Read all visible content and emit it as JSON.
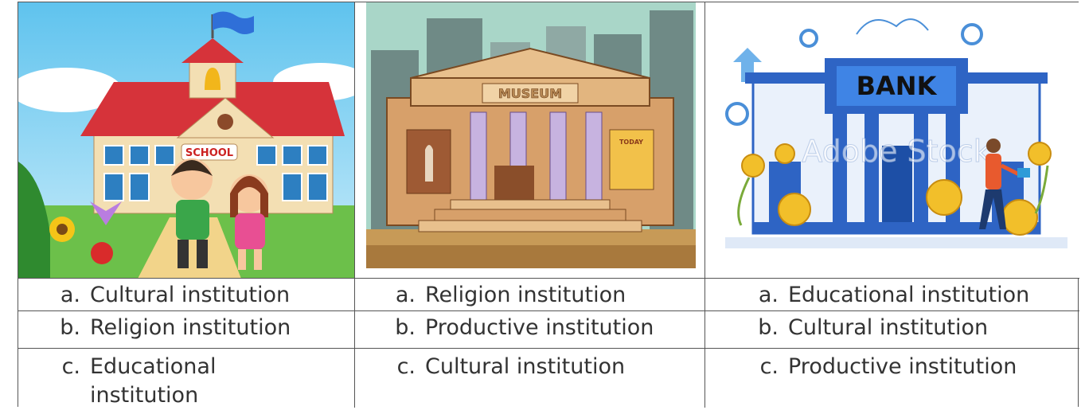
{
  "columns": [
    {
      "image": {
        "sign": "SCHOOL"
      },
      "options": [
        {
          "letter": "a.",
          "text": "Cultural institution"
        },
        {
          "letter": "b.",
          "text": "Religion institution"
        },
        {
          "letter": "c.",
          "text": "Educational institution"
        }
      ]
    },
    {
      "image": {
        "sign": "MUSEUM",
        "poster": "TODAY"
      },
      "options": [
        {
          "letter": "a.",
          "text": "Religion institution"
        },
        {
          "letter": "b.",
          "text": "Productive institution"
        },
        {
          "letter": "c.",
          "text": "Cultural institution"
        }
      ]
    },
    {
      "image": {
        "sign": "BANK",
        "watermark": "Adobe Stock"
      },
      "options": [
        {
          "letter": "a.",
          "text": "Educational institution"
        },
        {
          "letter": "b.",
          "text": "Cultural institution"
        },
        {
          "letter": "c.",
          "text": "Productive institution"
        }
      ]
    }
  ]
}
